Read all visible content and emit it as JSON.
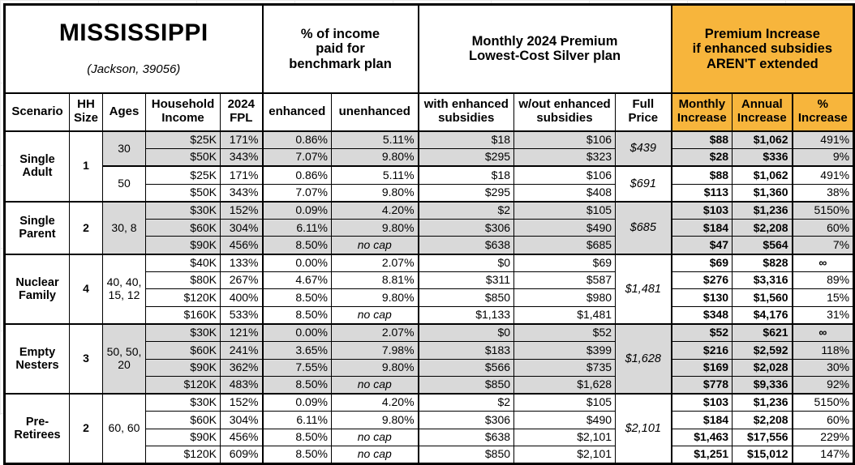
{
  "chart_data": {
    "type": "table",
    "title": "MISSISSIPPI",
    "subtitle": "(Jackson, 39056)",
    "banner_headers": [
      "% of income\npaid for\nbenchmark plan",
      "Monthly 2024 Premium\nLowest-Cost Silver plan",
      "Premium Increase\nif enhanced subsidies\nAREN'T extended"
    ],
    "column_headers": [
      "Scenario",
      "HH\nSize",
      "Ages",
      "Household\nIncome",
      "2024\nFPL",
      "enhanced",
      "unenhanced",
      "with enhanced\nsubsidies",
      "w/out enhanced\nsubsidies",
      "Full\nPrice",
      "Monthly\nIncrease",
      "Annual\nIncrease",
      "%\nIncrease"
    ],
    "colors": {
      "header_highlight": "#F7B53C",
      "row_shade": "#D9D9D9"
    },
    "groups": [
      {
        "scenario": "Single\nAdult",
        "hh_size": "1",
        "subgroups": [
          {
            "ages": "30",
            "shaded": true,
            "full_price": "$439",
            "rows": [
              {
                "income": "$25K",
                "fpl": "171%",
                "enhanced": "0.86%",
                "unenhanced": "5.11%",
                "with_subsidies": "$18",
                "without_subsidies": "$106",
                "monthly_increase": "$88",
                "annual_increase": "$1,062",
                "pct_increase": "491%"
              },
              {
                "income": "$50K",
                "fpl": "343%",
                "enhanced": "7.07%",
                "unenhanced": "9.80%",
                "with_subsidies": "$295",
                "without_subsidies": "$323",
                "monthly_increase": "$28",
                "annual_increase": "$336",
                "pct_increase": "9%"
              }
            ]
          },
          {
            "ages": "50",
            "shaded": false,
            "full_price": "$691",
            "rows": [
              {
                "income": "$25K",
                "fpl": "171%",
                "enhanced": "0.86%",
                "unenhanced": "5.11%",
                "with_subsidies": "$18",
                "without_subsidies": "$106",
                "monthly_increase": "$88",
                "annual_increase": "$1,062",
                "pct_increase": "491%"
              },
              {
                "income": "$50K",
                "fpl": "343%",
                "enhanced": "7.07%",
                "unenhanced": "9.80%",
                "with_subsidies": "$295",
                "without_subsidies": "$408",
                "monthly_increase": "$113",
                "annual_increase": "$1,360",
                "pct_increase": "38%"
              }
            ]
          }
        ]
      },
      {
        "scenario": "Single\nParent",
        "hh_size": "2",
        "subgroups": [
          {
            "ages": "30, 8",
            "shaded": true,
            "full_price": "$685",
            "rows": [
              {
                "income": "$30K",
                "fpl": "152%",
                "enhanced": "0.09%",
                "unenhanced": "4.20%",
                "with_subsidies": "$2",
                "without_subsidies": "$105",
                "monthly_increase": "$103",
                "annual_increase": "$1,236",
                "pct_increase": "5150%"
              },
              {
                "income": "$60K",
                "fpl": "304%",
                "enhanced": "6.11%",
                "unenhanced": "9.80%",
                "with_subsidies": "$306",
                "without_subsidies": "$490",
                "monthly_increase": "$184",
                "annual_increase": "$2,208",
                "pct_increase": "60%"
              },
              {
                "income": "$90K",
                "fpl": "456%",
                "enhanced": "8.50%",
                "unenhanced": "no cap",
                "with_subsidies": "$638",
                "without_subsidies": "$685",
                "monthly_increase": "$47",
                "annual_increase": "$564",
                "pct_increase": "7%"
              }
            ]
          }
        ]
      },
      {
        "scenario": "Nuclear\nFamily",
        "hh_size": "4",
        "subgroups": [
          {
            "ages": "40, 40,\n15, 12",
            "shaded": false,
            "full_price": "$1,481",
            "rows": [
              {
                "income": "$40K",
                "fpl": "133%",
                "enhanced": "0.00%",
                "unenhanced": "2.07%",
                "with_subsidies": "$0",
                "without_subsidies": "$69",
                "monthly_increase": "$69",
                "annual_increase": "$828",
                "pct_increase": "∞"
              },
              {
                "income": "$80K",
                "fpl": "267%",
                "enhanced": "4.67%",
                "unenhanced": "8.81%",
                "with_subsidies": "$311",
                "without_subsidies": "$587",
                "monthly_increase": "$276",
                "annual_increase": "$3,316",
                "pct_increase": "89%"
              },
              {
                "income": "$120K",
                "fpl": "400%",
                "enhanced": "8.50%",
                "unenhanced": "9.80%",
                "with_subsidies": "$850",
                "without_subsidies": "$980",
                "monthly_increase": "$130",
                "annual_increase": "$1,560",
                "pct_increase": "15%"
              },
              {
                "income": "$160K",
                "fpl": "533%",
                "enhanced": "8.50%",
                "unenhanced": "no cap",
                "with_subsidies": "$1,133",
                "without_subsidies": "$1,481",
                "monthly_increase": "$348",
                "annual_increase": "$4,176",
                "pct_increase": "31%"
              }
            ]
          }
        ]
      },
      {
        "scenario": "Empty\nNesters",
        "hh_size": "3",
        "subgroups": [
          {
            "ages": "50, 50,\n20",
            "shaded": true,
            "full_price": "$1,628",
            "rows": [
              {
                "income": "$30K",
                "fpl": "121%",
                "enhanced": "0.00%",
                "unenhanced": "2.07%",
                "with_subsidies": "$0",
                "without_subsidies": "$52",
                "monthly_increase": "$52",
                "annual_increase": "$621",
                "pct_increase": "∞"
              },
              {
                "income": "$60K",
                "fpl": "241%",
                "enhanced": "3.65%",
                "unenhanced": "7.98%",
                "with_subsidies": "$183",
                "without_subsidies": "$399",
                "monthly_increase": "$216",
                "annual_increase": "$2,592",
                "pct_increase": "118%"
              },
              {
                "income": "$90K",
                "fpl": "362%",
                "enhanced": "7.55%",
                "unenhanced": "9.80%",
                "with_subsidies": "$566",
                "without_subsidies": "$735",
                "monthly_increase": "$169",
                "annual_increase": "$2,028",
                "pct_increase": "30%"
              },
              {
                "income": "$120K",
                "fpl": "483%",
                "enhanced": "8.50%",
                "unenhanced": "no cap",
                "with_subsidies": "$850",
                "without_subsidies": "$1,628",
                "monthly_increase": "$778",
                "annual_increase": "$9,336",
                "pct_increase": "92%"
              }
            ]
          }
        ]
      },
      {
        "scenario": "Pre-\nRetirees",
        "hh_size": "2",
        "subgroups": [
          {
            "ages": "60, 60",
            "shaded": false,
            "full_price": "$2,101",
            "rows": [
              {
                "income": "$30K",
                "fpl": "152%",
                "enhanced": "0.09%",
                "unenhanced": "4.20%",
                "with_subsidies": "$2",
                "without_subsidies": "$105",
                "monthly_increase": "$103",
                "annual_increase": "$1,236",
                "pct_increase": "5150%"
              },
              {
                "income": "$60K",
                "fpl": "304%",
                "enhanced": "6.11%",
                "unenhanced": "9.80%",
                "with_subsidies": "$306",
                "without_subsidies": "$490",
                "monthly_increase": "$184",
                "annual_increase": "$2,208",
                "pct_increase": "60%"
              },
              {
                "income": "$90K",
                "fpl": "456%",
                "enhanced": "8.50%",
                "unenhanced": "no cap",
                "with_subsidies": "$638",
                "without_subsidies": "$2,101",
                "monthly_increase": "$1,463",
                "annual_increase": "$17,556",
                "pct_increase": "229%"
              },
              {
                "income": "$120K",
                "fpl": "609%",
                "enhanced": "8.50%",
                "unenhanced": "no cap",
                "with_subsidies": "$850",
                "without_subsidies": "$2,101",
                "monthly_increase": "$1,251",
                "annual_increase": "$15,012",
                "pct_increase": "147%"
              }
            ]
          }
        ]
      }
    ]
  }
}
